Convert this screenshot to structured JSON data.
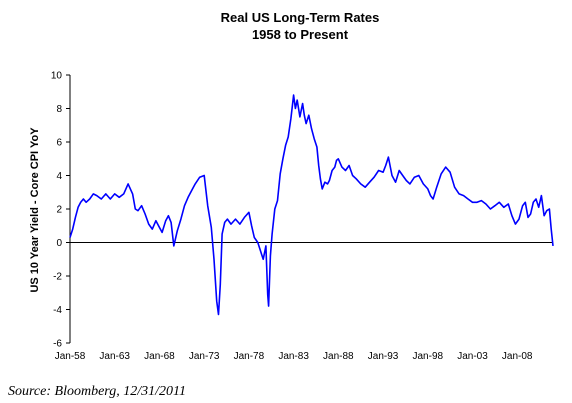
{
  "chart_data": {
    "type": "line",
    "title": "Real US Long-Term Rates",
    "subtitle": "1958 to Present",
    "xlabel": "",
    "ylabel": "US 10 Year Yield - Core CPI YoY",
    "ylim": [
      -6,
      10
    ],
    "yticks": [
      -6,
      -4,
      -2,
      0,
      2,
      4,
      6,
      8,
      10
    ],
    "xtick_labels": [
      "Jan-58",
      "Jan-63",
      "Jan-68",
      "Jan-73",
      "Jan-78",
      "Jan-83",
      "Jan-88",
      "Jan-93",
      "Jan-98",
      "Jan-03",
      "Jan-08"
    ],
    "xlim": [
      1958.0,
      2012.0
    ],
    "grid": false,
    "legend": "none",
    "line_color": "#0000ff",
    "series": [
      {
        "x": [
          1958.0,
          1958.3,
          1958.6,
          1958.9,
          1959.2,
          1959.5,
          1959.8,
          1960.2,
          1960.6,
          1961.0,
          1961.5,
          1962.0,
          1962.5,
          1963.0,
          1963.5,
          1964.0,
          1964.5,
          1965.0,
          1965.3,
          1965.6,
          1966.0,
          1966.4,
          1966.8,
          1967.2,
          1967.6,
          1968.0,
          1968.3,
          1968.7,
          1969.0,
          1969.3,
          1969.6,
          1970.0,
          1970.4,
          1970.8,
          1971.2,
          1971.6,
          1972.0,
          1972.5,
          1973.0,
          1973.4,
          1973.8,
          1974.1,
          1974.4,
          1974.6,
          1974.8,
          1975.0,
          1975.3,
          1975.6,
          1976.0,
          1976.5,
          1977.0,
          1977.5,
          1978.0,
          1978.3,
          1978.6,
          1979.0,
          1979.3,
          1979.6,
          1979.9,
          1980.1,
          1980.2,
          1980.4,
          1980.6,
          1980.9,
          1981.2,
          1981.5,
          1981.8,
          1982.1,
          1982.4,
          1982.7,
          1983.0,
          1983.2,
          1983.4,
          1983.7,
          1984.0,
          1984.2,
          1984.4,
          1984.7,
          1985.0,
          1985.3,
          1985.6,
          1985.8,
          1986.0,
          1986.2,
          1986.5,
          1986.8,
          1987.0,
          1987.3,
          1987.6,
          1987.8,
          1988.0,
          1988.4,
          1988.8,
          1989.2,
          1989.6,
          1990.0,
          1990.5,
          1991.0,
          1991.5,
          1992.0,
          1992.5,
          1993.0,
          1993.3,
          1993.6,
          1994.0,
          1994.4,
          1994.8,
          1995.2,
          1995.6,
          1996.0,
          1996.5,
          1997.0,
          1997.5,
          1998.0,
          1998.3,
          1998.6,
          1999.0,
          1999.5,
          2000.0,
          2000.5,
          2001.0,
          2001.5,
          2002.0,
          2002.5,
          2003.0,
          2003.5,
          2004.0,
          2004.5,
          2005.0,
          2005.5,
          2006.0,
          2006.5,
          2007.0,
          2007.4,
          2007.8,
          2008.2,
          2008.6,
          2008.9,
          2009.2,
          2009.5,
          2009.8,
          2010.1,
          2010.4,
          2010.7,
          2011.0,
          2011.3,
          2011.6,
          2011.8,
          2012.0
        ],
        "values": [
          0.3,
          0.8,
          1.5,
          2.1,
          2.4,
          2.6,
          2.4,
          2.6,
          2.9,
          2.8,
          2.6,
          2.9,
          2.6,
          2.9,
          2.7,
          2.9,
          3.5,
          2.9,
          2.0,
          1.9,
          2.2,
          1.7,
          1.1,
          0.8,
          1.3,
          0.9,
          0.6,
          1.3,
          1.6,
          1.2,
          -0.2,
          0.7,
          1.4,
          2.2,
          2.7,
          3.1,
          3.5,
          3.9,
          4.0,
          2.2,
          0.9,
          -1.0,
          -3.5,
          -4.3,
          -2.5,
          0.5,
          1.2,
          1.4,
          1.1,
          1.4,
          1.1,
          1.5,
          1.8,
          1.0,
          0.3,
          0.0,
          -0.5,
          -1.0,
          -0.2,
          -3.1,
          -3.8,
          -0.8,
          0.5,
          2.0,
          2.5,
          4.1,
          5.0,
          5.8,
          6.3,
          7.4,
          8.8,
          8.0,
          8.5,
          7.5,
          8.3,
          7.6,
          7.1,
          7.6,
          6.8,
          6.2,
          5.7,
          4.6,
          3.8,
          3.2,
          3.6,
          3.5,
          3.7,
          4.3,
          4.5,
          4.9,
          5.0,
          4.5,
          4.3,
          4.6,
          4.0,
          3.8,
          3.5,
          3.3,
          3.6,
          3.9,
          4.3,
          4.2,
          4.6,
          5.1,
          4.0,
          3.6,
          4.3,
          4.0,
          3.7,
          3.5,
          3.9,
          4.0,
          3.5,
          3.2,
          2.8,
          2.6,
          3.3,
          4.1,
          4.5,
          4.2,
          3.3,
          2.9,
          2.8,
          2.6,
          2.4,
          2.4,
          2.5,
          2.3,
          2.0,
          2.2,
          2.4,
          2.1,
          2.3,
          1.6,
          1.1,
          1.4,
          2.2,
          2.4,
          1.5,
          1.7,
          2.4,
          2.6,
          2.1,
          2.8,
          1.6,
          1.9,
          2.0,
          0.8,
          -0.2
        ]
      }
    ]
  },
  "source_text": "Source: Bloomberg, 12/31/2011"
}
